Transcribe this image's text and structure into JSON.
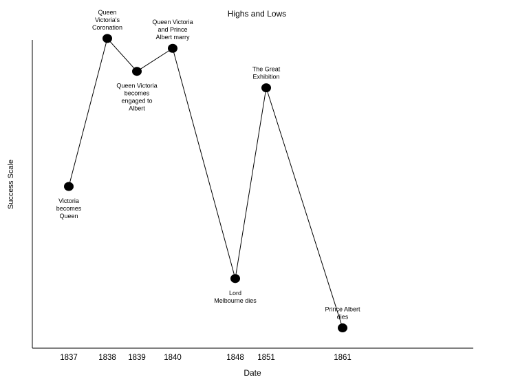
{
  "chart_data": {
    "type": "line",
    "title": "Highs and Lows",
    "xlabel": "Date",
    "ylabel": "Success Scale",
    "grid": false,
    "legend": "none",
    "x_tick_labels": [
      "1837",
      "1838",
      "1839",
      "1840",
      "1848",
      "1851",
      "1861"
    ],
    "ylim": [
      0,
      10
    ],
    "series": [
      {
        "color": "#000000",
        "marker": "filled-circle",
        "points": [
          {
            "x": "1837",
            "y": 5.0,
            "label": [
              "Victoria",
              "becomes",
              "Queen"
            ],
            "label_pos": "below"
          },
          {
            "x": "1838",
            "y": 9.5,
            "label": [
              "Queen",
              "Victoria's",
              "Coronation"
            ],
            "label_pos": "above"
          },
          {
            "x": "1839",
            "y": 8.5,
            "label": [
              "Queen Victoria",
              "becomes",
              "engaged to",
              "Albert"
            ],
            "label_pos": "below"
          },
          {
            "x": "1840",
            "y": 9.2,
            "label": [
              "Queen Victoria",
              "and Prince",
              "Albert marry"
            ],
            "label_pos": "above"
          },
          {
            "x": "1848",
            "y": 2.2,
            "label": [
              "Lord",
              "Melbourne dies"
            ],
            "label_pos": "below"
          },
          {
            "x": "1851",
            "y": 8.0,
            "label": [
              "The Great",
              "Exhibition"
            ],
            "label_pos": "above"
          },
          {
            "x": "1861",
            "y": 0.7,
            "label": [
              "Prince Albert",
              "dies"
            ],
            "label_pos": "above"
          }
        ]
      }
    ]
  }
}
